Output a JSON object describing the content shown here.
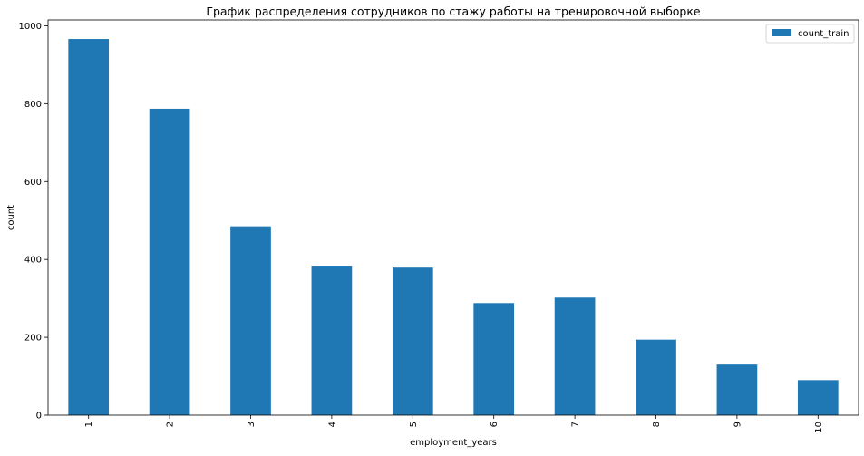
{
  "chart_data": {
    "type": "bar",
    "title": "График распределения сотрудников по стажу работы на тренировочной выборке",
    "xlabel": "employment_years",
    "ylabel": "count",
    "categories": [
      "1",
      "2",
      "3",
      "4",
      "5",
      "6",
      "7",
      "8",
      "9",
      "10"
    ],
    "series": [
      {
        "name": "count_train",
        "values": [
          966,
          787,
          485,
          384,
          379,
          288,
          302,
          194,
          130,
          90
        ]
      }
    ],
    "ylim": [
      0,
      1015
    ],
    "yticks": [
      0,
      200,
      400,
      600,
      800,
      1000
    ],
    "grid": false,
    "legend_position": "top-right",
    "x_tick_rotation": 90,
    "colors": {
      "bar": "#1f77b4",
      "axis": "#000000",
      "background": "#ffffff",
      "legend_border": "#cccccc"
    }
  }
}
